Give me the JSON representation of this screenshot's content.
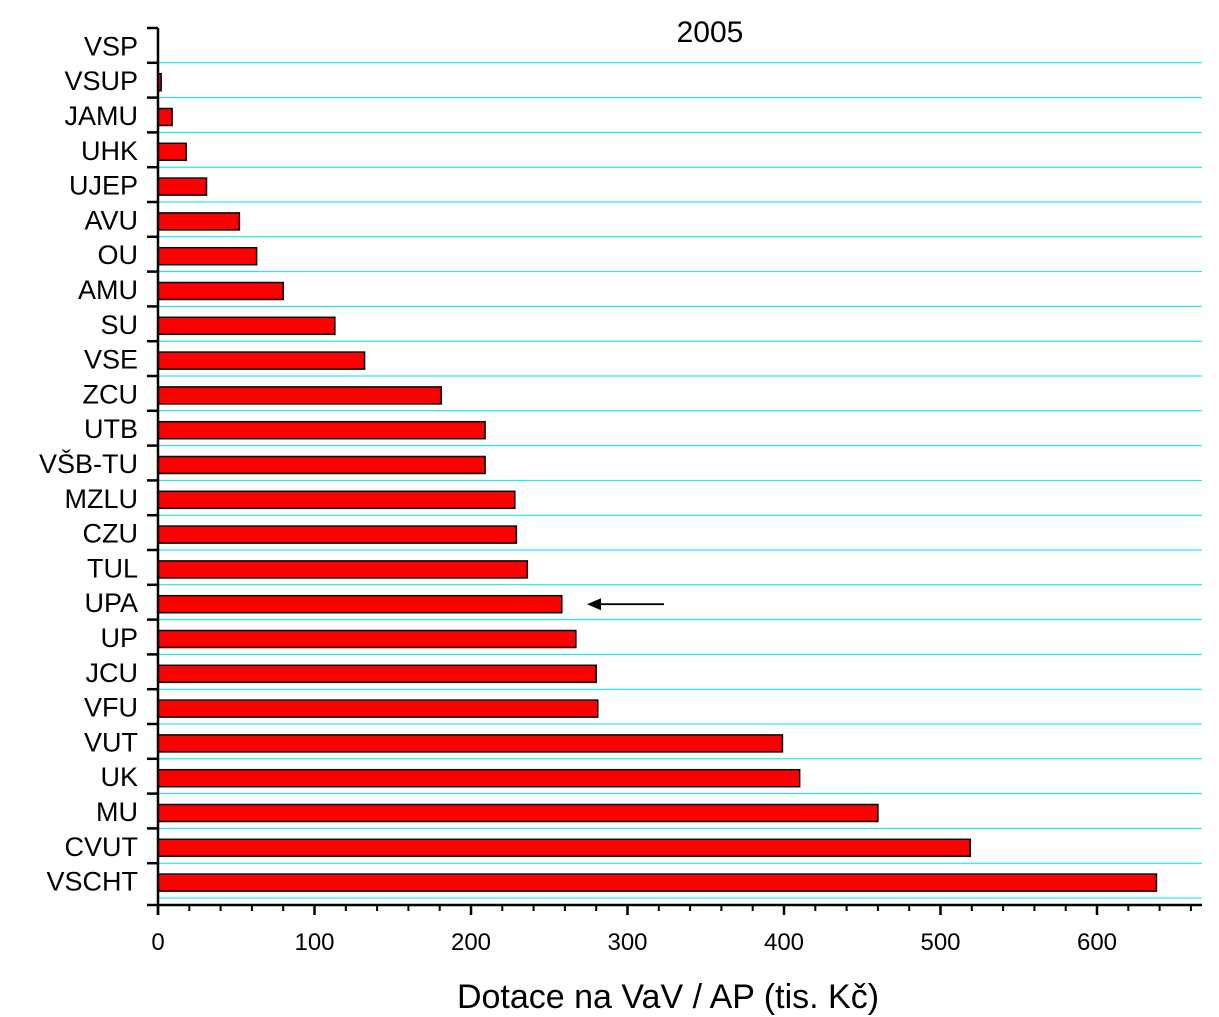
{
  "chart_data": {
    "type": "bar",
    "orientation": "horizontal",
    "title": "2005",
    "xlabel": "Dotace na VaV / AP (tis. Kč)",
    "ylabel": "",
    "categories": [
      "VSP",
      "VSUP",
      "JAMU",
      "UHK",
      "UJEP",
      "AVU",
      "OU",
      "AMU",
      "SU",
      "VSE",
      "ZCU",
      "UTB",
      "VŠB-TU",
      "MZLU",
      "CZU",
      "TUL",
      "UPA",
      "UP",
      "JCU",
      "VFU",
      "VUT",
      "UK",
      "MU",
      "CVUT",
      "VSCHT"
    ],
    "values": [
      0,
      2,
      9,
      18,
      31,
      52,
      63,
      80,
      113,
      132,
      181,
      209,
      209,
      228,
      229,
      236,
      258,
      267,
      280,
      281,
      399,
      410,
      460,
      519,
      638
    ],
    "xlim": [
      0,
      660
    ],
    "xticks": [
      0,
      100,
      200,
      300,
      400,
      500,
      600
    ],
    "grid": "horizontal",
    "highlight_category": "UPA",
    "colors": {
      "bar_fill": "#ff0000",
      "bar_stroke": "#000000",
      "grid": "#00e5ee",
      "axis": "#000000"
    }
  }
}
